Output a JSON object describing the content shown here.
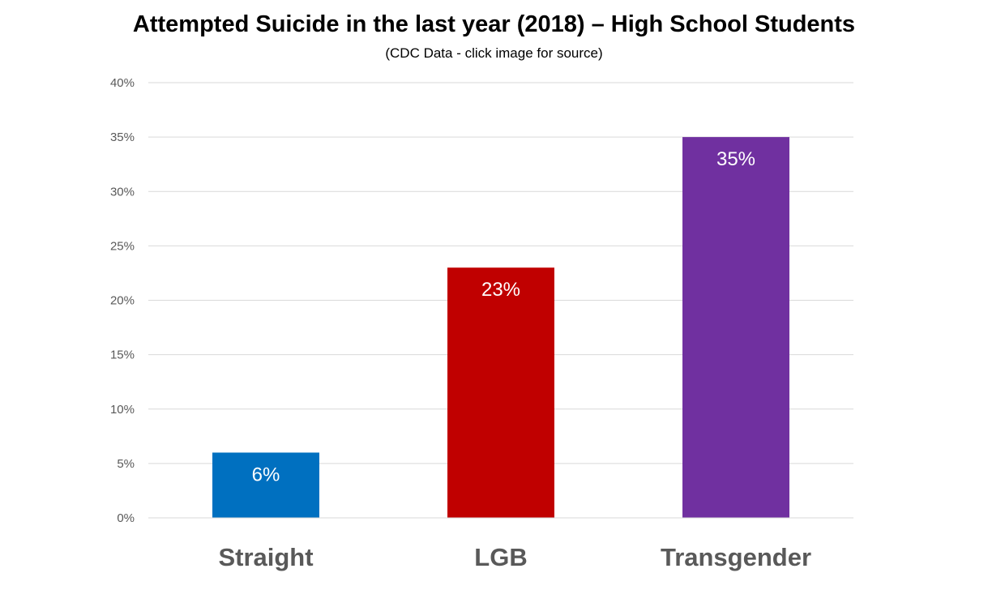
{
  "chart_data": {
    "type": "bar",
    "title": "Attempted Suicide in the last year (2018) – High School Students",
    "subtitle": "(CDC Data - click image for source)",
    "xlabel": "",
    "ylabel": "",
    "categories": [
      "Straight",
      "LGB",
      "Transgender"
    ],
    "values": [
      6,
      23,
      35
    ],
    "data_labels": [
      "6%",
      "23%",
      "35%"
    ],
    "colors": [
      "#0070c0",
      "#c00000",
      "#7030a0"
    ],
    "ylim": [
      0,
      40
    ],
    "yticks": [
      0,
      5,
      10,
      15,
      20,
      25,
      30,
      35,
      40
    ],
    "ytick_labels": [
      "0%",
      "5%",
      "10%",
      "15%",
      "20%",
      "25%",
      "30%",
      "35%",
      "40%"
    ],
    "grid": true,
    "legend": "none"
  }
}
